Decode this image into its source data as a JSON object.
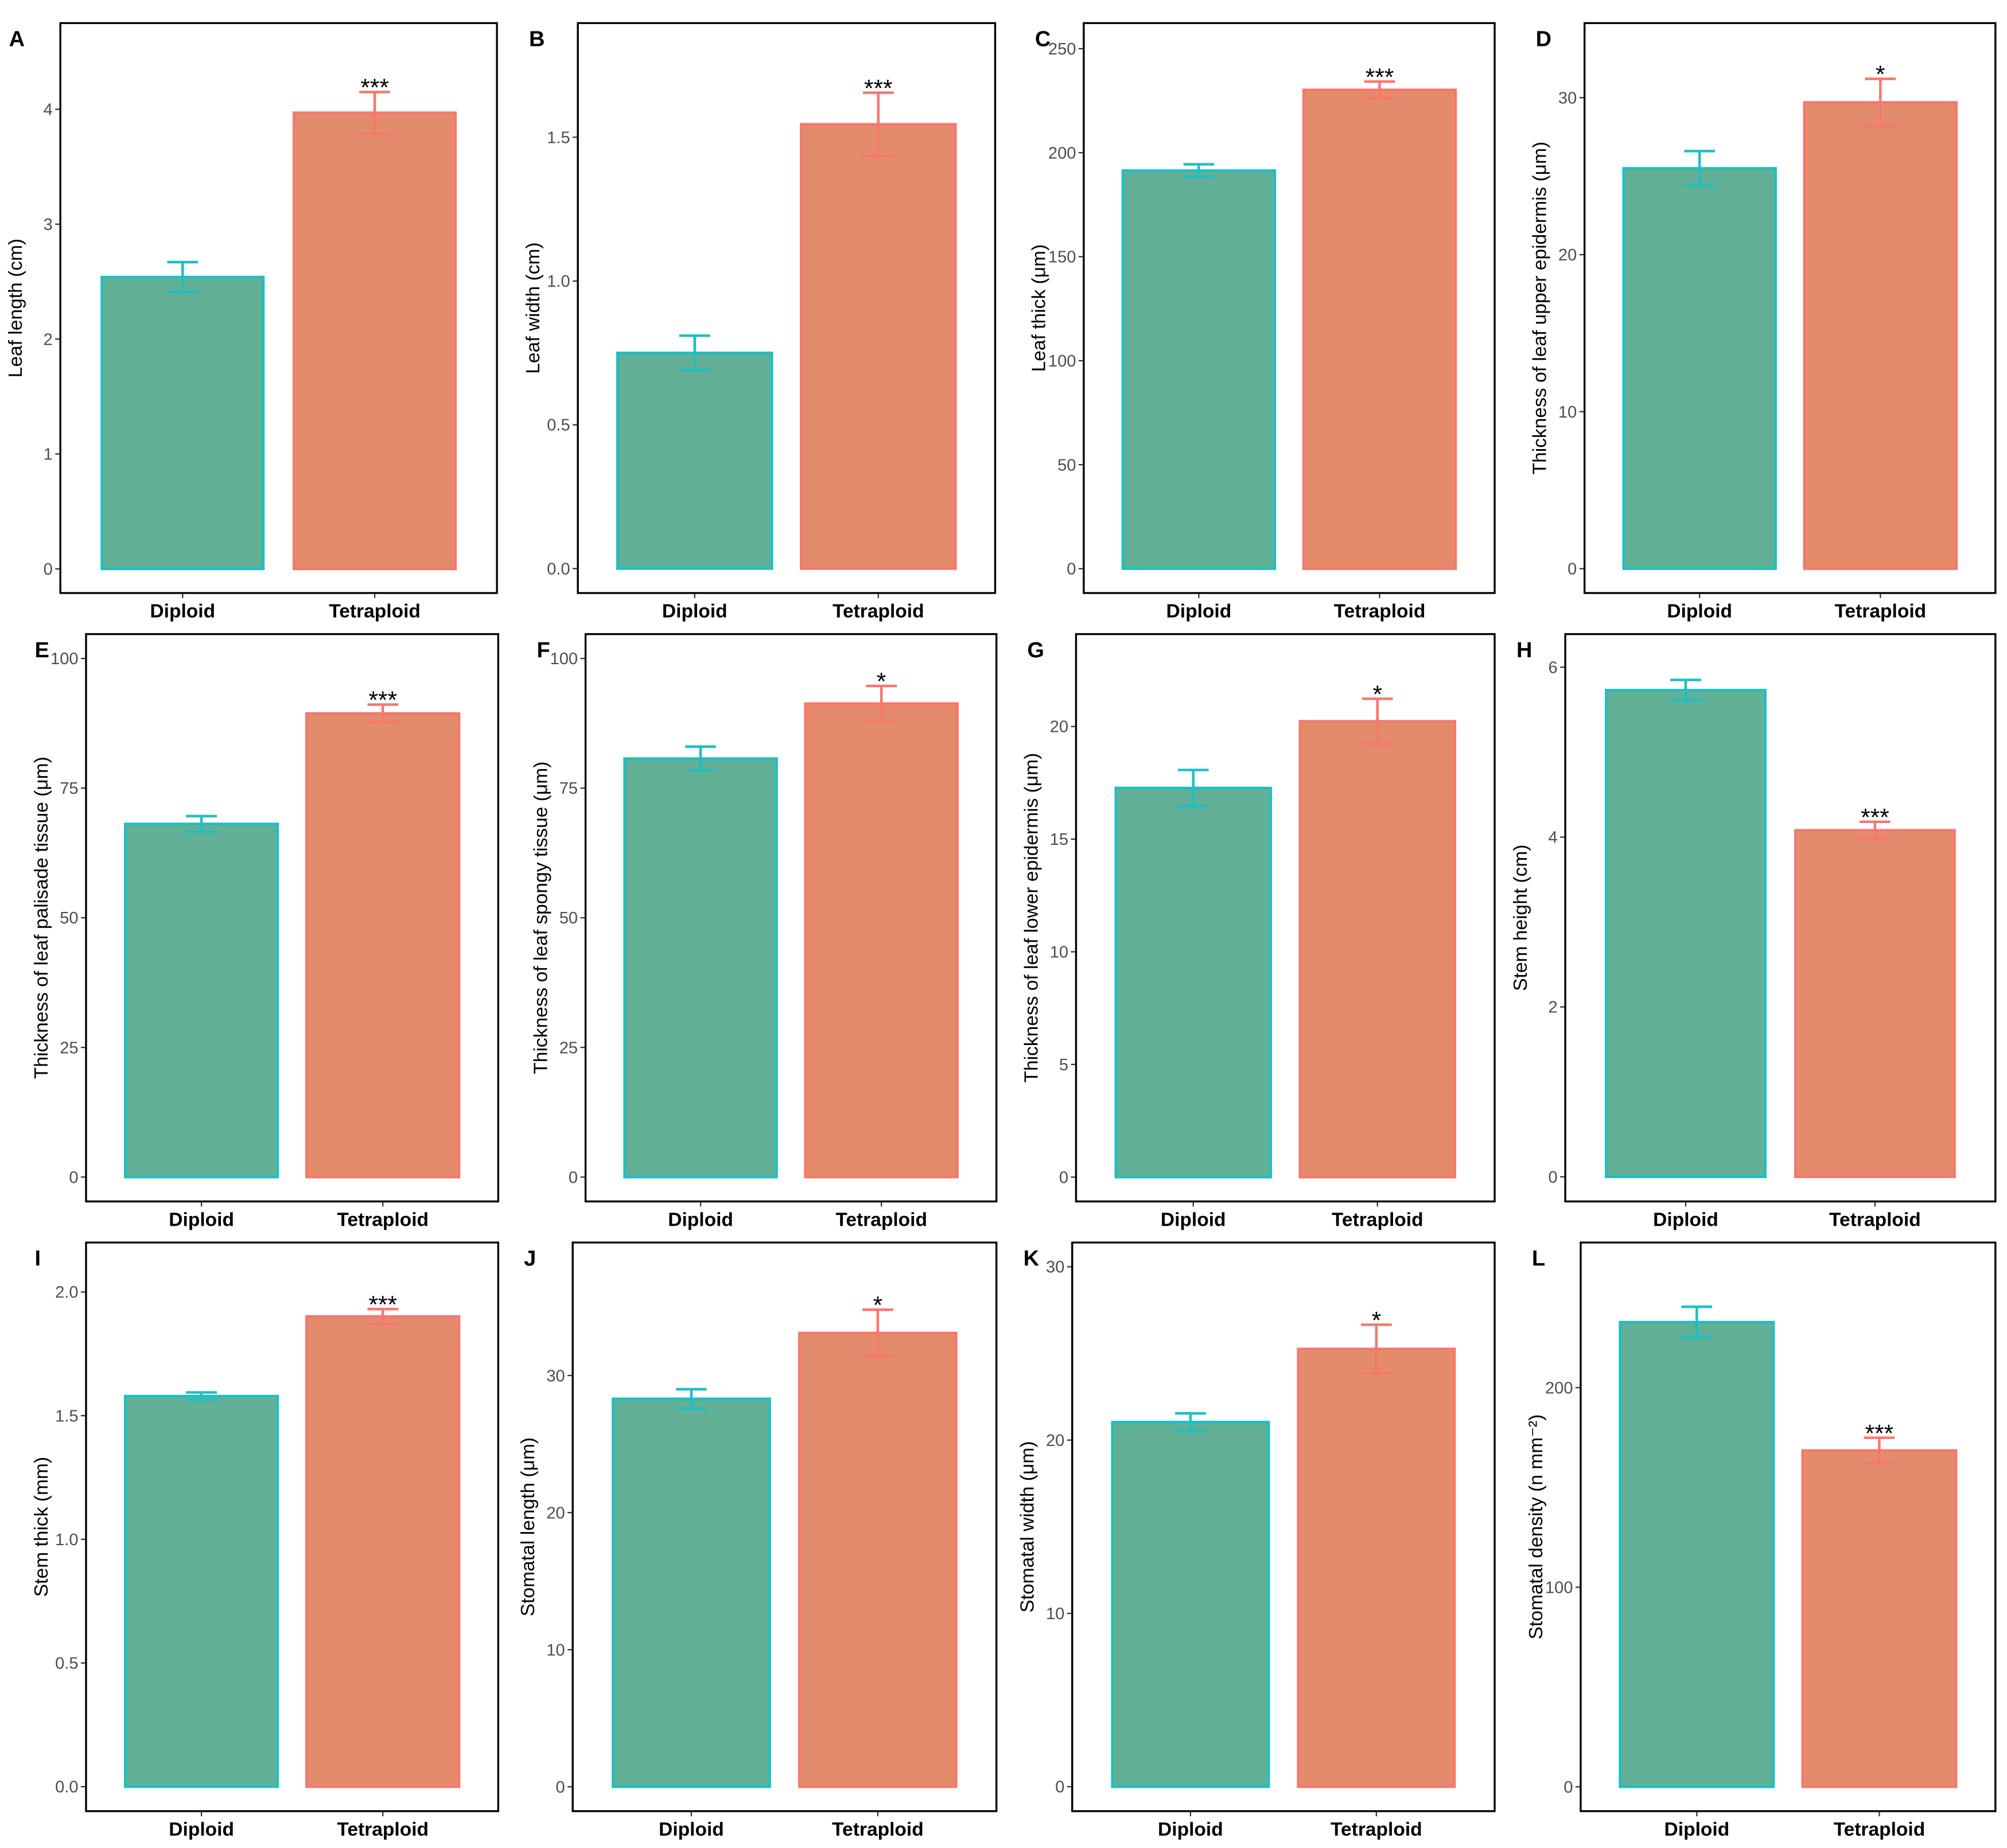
{
  "chart_data": [
    {
      "type": "bar",
      "label": "A",
      "ylabel": "Leaf length (cm)",
      "categories": [
        "Diploid",
        "Tetraploid"
      ],
      "values": [
        2.54,
        3.97
      ],
      "errors": [
        0.13,
        0.18
      ],
      "annotation": "***",
      "colors": [
        "#62b096",
        "#e38b6b"
      ],
      "edge_colors": [
        "#1dbfc4",
        "#f8766d"
      ],
      "ylim": [
        -0.21,
        4.75
      ],
      "yticks": [
        0,
        1,
        2,
        3,
        4
      ]
    },
    {
      "type": "bar",
      "label": "B",
      "ylabel": "Leaf width (cm)",
      "categories": [
        "Diploid",
        "Tetraploid"
      ],
      "values": [
        0.75,
        1.545
      ],
      "errors": [
        0.06,
        0.11
      ],
      "annotation": "***",
      "colors": [
        "#62b096",
        "#e38b6b"
      ],
      "edge_colors": [
        "#1dbfc4",
        "#f8766d"
      ],
      "ylim": [
        -0.085,
        1.897
      ],
      "yticks": [
        {
          "value": 0,
          "label": "0.0"
        },
        {
          "value": 0.5,
          "label": "0.5"
        },
        {
          "value": 1,
          "label": "1.0"
        },
        {
          "value": 1.5,
          "label": "1.5"
        }
      ]
    },
    {
      "type": "bar",
      "label": "C",
      "ylabel": "Leaf thick (μm)",
      "categories": [
        "Diploid",
        "Tetraploid"
      ],
      "values": [
        191.4,
        230.2
      ],
      "errors": [
        3,
        4
      ],
      "annotation": "***",
      "colors": [
        "#62b096",
        "#e38b6b"
      ],
      "edge_colors": [
        "#1dbfc4",
        "#f8766d"
      ],
      "ylim": [
        -11.7,
        262.3
      ],
      "yticks": [
        0,
        50,
        100,
        150,
        200,
        250
      ]
    },
    {
      "type": "bar",
      "label": "D",
      "ylabel": "Thickness of leaf upper epidermis (μm)",
      "categories": [
        "Diploid",
        "Tetraploid"
      ],
      "values": [
        25.5,
        29.7
      ],
      "errors": [
        1.1,
        1.5
      ],
      "annotation": "*",
      "colors": [
        "#62b096",
        "#e38b6b"
      ],
      "edge_colors": [
        "#1dbfc4",
        "#f8766d"
      ],
      "ylim": [
        -1.55,
        34.75
      ],
      "yticks": [
        0,
        10,
        20,
        30
      ]
    },
    {
      "type": "bar",
      "label": "E",
      "ylabel": "Thickness of leaf palisade tissue (μm)",
      "categories": [
        "Diploid",
        "Tetraploid"
      ],
      "values": [
        68.1,
        89.4
      ],
      "errors": [
        1.5,
        1.7
      ],
      "annotation": "***",
      "colors": [
        "#62b096",
        "#e38b6b"
      ],
      "edge_colors": [
        "#1dbfc4",
        "#f8766d"
      ],
      "ylim": [
        -4.7,
        104.7
      ],
      "yticks": [
        0,
        25,
        50,
        75,
        100
      ]
    },
    {
      "type": "bar",
      "label": "F",
      "ylabel": "Thickness of leaf spongy tissue (μm)",
      "categories": [
        "Diploid",
        "Tetraploid"
      ],
      "values": [
        80.7,
        91.3
      ],
      "errors": [
        2.3,
        3.4
      ],
      "annotation": "*",
      "colors": [
        "#62b096",
        "#e38b6b"
      ],
      "edge_colors": [
        "#1dbfc4",
        "#f8766d"
      ],
      "ylim": [
        -4.7,
        104.7
      ],
      "yticks": [
        0,
        25,
        50,
        75,
        100
      ]
    },
    {
      "type": "bar",
      "label": "G",
      "ylabel": "Thickness of leaf lower epidermis (μm)",
      "categories": [
        "Diploid",
        "Tetraploid"
      ],
      "values": [
        17.27,
        20.23
      ],
      "errors": [
        0.8,
        1.0
      ],
      "annotation": "*",
      "colors": [
        "#62b096",
        "#e38b6b"
      ],
      "edge_colors": [
        "#1dbfc4",
        "#f8766d"
      ],
      "ylim": [
        -1.08,
        24.1
      ],
      "yticks": [
        0,
        5,
        10,
        15,
        20
      ]
    },
    {
      "type": "bar",
      "label": "H",
      "ylabel": "Stem height (cm)",
      "categories": [
        "Diploid",
        "Tetraploid"
      ],
      "values": [
        5.73,
        4.08
      ],
      "errors": [
        0.12,
        0.1
      ],
      "annotation": "***",
      "colors": [
        "#62b096",
        "#e38b6b"
      ],
      "edge_colors": [
        "#1dbfc4",
        "#f8766d"
      ],
      "ylim": [
        -0.29,
        6.39
      ],
      "yticks": [
        0,
        2,
        4,
        6
      ]
    },
    {
      "type": "bar",
      "label": "I",
      "ylabel": "Stem thick (mm)",
      "categories": [
        "Diploid",
        "Tetraploid"
      ],
      "values": [
        1.579,
        1.901
      ],
      "errors": [
        0.015,
        0.03
      ],
      "annotation": "***",
      "colors": [
        "#62b096",
        "#e38b6b"
      ],
      "edge_colors": [
        "#1dbfc4",
        "#f8766d"
      ],
      "ylim": [
        -0.099,
        2.2
      ],
      "yticks": [
        {
          "value": 0,
          "label": "0.0"
        },
        {
          "value": 0.5,
          "label": "0.5"
        },
        {
          "value": 1,
          "label": "1.0"
        },
        {
          "value": 1.5,
          "label": "1.5"
        },
        {
          "value": 2,
          "label": "2.0"
        }
      ]
    },
    {
      "type": "bar",
      "label": "J",
      "ylabel": "Stomatal length (μm)",
      "categories": [
        "Diploid",
        "Tetraploid"
      ],
      "values": [
        28.3,
        33.1
      ],
      "errors": [
        0.7,
        1.7
      ],
      "annotation": "*",
      "colors": [
        "#62b096",
        "#e38b6b"
      ],
      "edge_colors": [
        "#1dbfc4",
        "#f8766d"
      ],
      "ylim": [
        -1.78,
        39.7
      ],
      "yticks": [
        0,
        10,
        20,
        30
      ]
    },
    {
      "type": "bar",
      "label": "K",
      "ylabel": "Stomatal width (μm)",
      "categories": [
        "Diploid",
        "Tetraploid"
      ],
      "values": [
        21.04,
        25.26
      ],
      "errors": [
        0.5,
        1.4
      ],
      "annotation": "*",
      "colors": [
        "#62b096",
        "#e38b6b"
      ],
      "edge_colors": [
        "#1dbfc4",
        "#f8766d"
      ],
      "ylim": [
        -1.41,
        31.4
      ],
      "yticks": [
        0,
        10,
        20,
        30
      ]
    },
    {
      "type": "bar",
      "label": "L",
      "ylabel": "Stomatal density (n mm⁻²)",
      "categories": [
        "Diploid",
        "Tetraploid"
      ],
      "values": [
        232.8,
        168.5
      ],
      "errors": [
        7.7,
        6.4
      ],
      "annotation": "***",
      "colors": [
        "#62b096",
        "#e38b6b"
      ],
      "edge_colors": [
        "#1dbfc4",
        "#f8766d"
      ],
      "ylim": [
        -12.2,
        272.7
      ],
      "yticks": [
        0,
        100,
        200
      ]
    }
  ]
}
